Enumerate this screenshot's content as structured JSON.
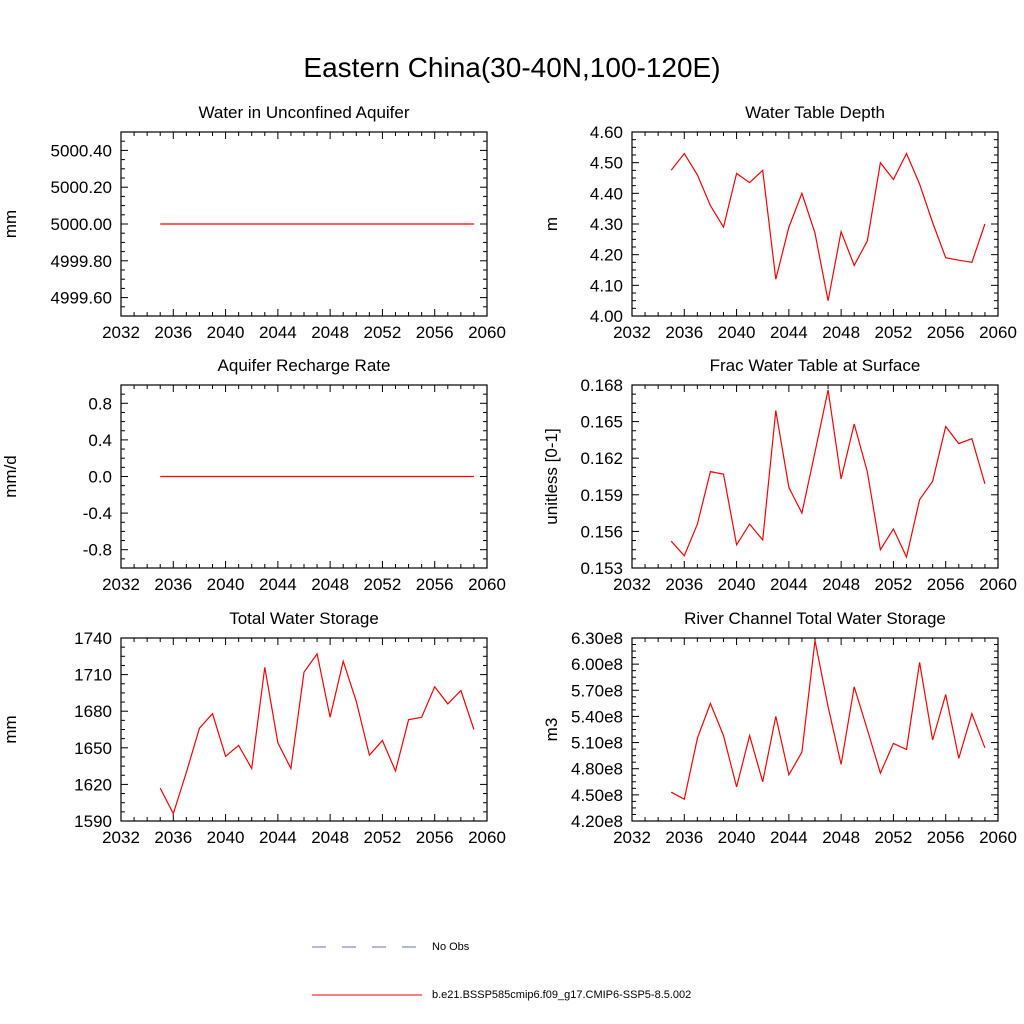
{
  "figure": {
    "title": "Eastern China(30-40N,100-120E)",
    "legend": [
      {
        "label": "No Obs",
        "style": "dashed",
        "color": "#6a6fb2"
      },
      {
        "label": "b.e21.BSSP585cmip6.f09_g17.CMIP6-SSP5-8.5.002",
        "style": "solid",
        "color": "#ff0000"
      }
    ]
  },
  "chart_data": [
    {
      "type": "line",
      "title": "Water in Unconfined Aquifer",
      "xlabel": "",
      "ylabel": "mm",
      "xlim": [
        2032,
        2060
      ],
      "ylim": [
        4999.5,
        5000.5
      ],
      "xticks": [
        2032,
        2036,
        2040,
        2044,
        2048,
        2052,
        2056,
        2060
      ],
      "yticks": [
        4999.6,
        4999.8,
        5000.0,
        5000.2,
        5000.4
      ],
      "ytick_labels": [
        "4999.60",
        "4999.80",
        "5000.00",
        "5000.20",
        "5000.40"
      ],
      "x": [
        2035,
        2036,
        2037,
        2038,
        2039,
        2040,
        2041,
        2042,
        2043,
        2044,
        2045,
        2046,
        2047,
        2048,
        2049,
        2050,
        2051,
        2052,
        2053,
        2054,
        2055,
        2056,
        2057,
        2058,
        2059
      ],
      "series": [
        {
          "name": "b.e21.BSSP585cmip6.f09_g17.CMIP6-SSP5-8.5.002",
          "color": "#ff0000",
          "values": [
            5000,
            5000,
            5000,
            5000,
            5000,
            5000,
            5000,
            5000,
            5000,
            5000,
            5000,
            5000,
            5000,
            5000,
            5000,
            5000,
            5000,
            5000,
            5000,
            5000,
            5000,
            5000,
            5000,
            5000,
            5000
          ]
        }
      ]
    },
    {
      "type": "line",
      "title": "Water Table Depth",
      "xlabel": "",
      "ylabel": "m",
      "xlim": [
        2032,
        2060
      ],
      "ylim": [
        4.0,
        4.6
      ],
      "xticks": [
        2032,
        2036,
        2040,
        2044,
        2048,
        2052,
        2056,
        2060
      ],
      "yticks": [
        4.0,
        4.1,
        4.2,
        4.3,
        4.4,
        4.5,
        4.6
      ],
      "ytick_labels": [
        "4.00",
        "4.10",
        "4.20",
        "4.30",
        "4.40",
        "4.50",
        "4.60"
      ],
      "x": [
        2035,
        2036,
        2037,
        2038,
        2039,
        2040,
        2041,
        2042,
        2043,
        2044,
        2045,
        2046,
        2047,
        2048,
        2049,
        2050,
        2051,
        2052,
        2053,
        2054,
        2055,
        2056,
        2057,
        2058,
        2059
      ],
      "series": [
        {
          "name": "b.e21.BSSP585cmip6.f09_g17.CMIP6-SSP5-8.5.002",
          "color": "#ff0000",
          "values": [
            4.475,
            4.53,
            4.46,
            4.36,
            4.29,
            4.465,
            4.435,
            4.475,
            4.12,
            4.29,
            4.4,
            4.27,
            4.05,
            4.275,
            4.165,
            4.245,
            4.5,
            4.445,
            4.53,
            4.43,
            4.305,
            4.19,
            4.182,
            4.175,
            4.3
          ]
        }
      ]
    },
    {
      "type": "line",
      "title": "Aquifer Recharge Rate",
      "xlabel": "",
      "ylabel": "mm/d",
      "xlim": [
        2032,
        2060
      ],
      "ylim": [
        -1.0,
        1.0
      ],
      "xticks": [
        2032,
        2036,
        2040,
        2044,
        2048,
        2052,
        2056,
        2060
      ],
      "yticks": [
        -0.8,
        -0.4,
        0.0,
        0.4,
        0.8
      ],
      "ytick_labels": [
        "-0.8",
        "-0.4",
        "0.0",
        "0.4",
        "0.8"
      ],
      "x": [
        2035,
        2036,
        2037,
        2038,
        2039,
        2040,
        2041,
        2042,
        2043,
        2044,
        2045,
        2046,
        2047,
        2048,
        2049,
        2050,
        2051,
        2052,
        2053,
        2054,
        2055,
        2056,
        2057,
        2058,
        2059
      ],
      "series": [
        {
          "name": "b.e21.BSSP585cmip6.f09_g17.CMIP6-SSP5-8.5.002",
          "color": "#ff0000",
          "values": [
            0,
            0,
            0,
            0,
            0,
            0,
            0,
            0,
            0,
            0,
            0,
            0,
            0,
            0,
            0,
            0,
            0,
            0,
            0,
            0,
            0,
            0,
            0,
            0,
            0
          ]
        }
      ]
    },
    {
      "type": "line",
      "title": "Frac Water Table at Surface",
      "xlabel": "",
      "ylabel": "unitless [0-1]",
      "xlim": [
        2032,
        2060
      ],
      "ylim": [
        0.153,
        0.168
      ],
      "xticks": [
        2032,
        2036,
        2040,
        2044,
        2048,
        2052,
        2056,
        2060
      ],
      "yticks": [
        0.153,
        0.156,
        0.159,
        0.162,
        0.165,
        0.168
      ],
      "ytick_labels": [
        "0.153",
        "0.156",
        "0.159",
        "0.162",
        "0.165",
        "0.168"
      ],
      "x": [
        2035,
        2036,
        2037,
        2038,
        2039,
        2040,
        2041,
        2042,
        2043,
        2044,
        2045,
        2046,
        2047,
        2048,
        2049,
        2050,
        2051,
        2052,
        2053,
        2054,
        2055,
        2056,
        2057,
        2058,
        2059
      ],
      "series": [
        {
          "name": "b.e21.BSSP585cmip6.f09_g17.CMIP6-SSP5-8.5.002",
          "color": "#ff0000",
          "values": [
            0.1552,
            0.154,
            0.1566,
            0.1609,
            0.1607,
            0.1549,
            0.1566,
            0.1553,
            0.1659,
            0.1596,
            0.1575,
            0.1625,
            0.1676,
            0.1603,
            0.1648,
            0.1609,
            0.1545,
            0.1562,
            0.1539,
            0.1586,
            0.1601,
            0.1646,
            0.1632,
            0.1636,
            0.1599
          ]
        }
      ]
    },
    {
      "type": "line",
      "title": "Total Water Storage",
      "xlabel": "",
      "ylabel": "mm",
      "xlim": [
        2032,
        2060
      ],
      "ylim": [
        1590,
        1740
      ],
      "xticks": [
        2032,
        2036,
        2040,
        2044,
        2048,
        2052,
        2056,
        2060
      ],
      "yticks": [
        1590,
        1620,
        1650,
        1680,
        1710,
        1740
      ],
      "ytick_labels": [
        "1590",
        "1620",
        "1650",
        "1680",
        "1710",
        "1740"
      ],
      "x": [
        2035,
        2036,
        2037,
        2038,
        2039,
        2040,
        2041,
        2042,
        2043,
        2044,
        2045,
        2046,
        2047,
        2048,
        2049,
        2050,
        2051,
        2052,
        2053,
        2054,
        2055,
        2056,
        2057,
        2058,
        2059
      ],
      "series": [
        {
          "name": "b.e21.BSSP585cmip6.f09_g17.CMIP6-SSP5-8.5.002",
          "color": "#ff0000",
          "values": [
            1617,
            1596,
            1630,
            1666,
            1678,
            1643,
            1652,
            1633,
            1716,
            1654,
            1633,
            1712,
            1727,
            1675,
            1721,
            1688,
            1644,
            1656,
            1631,
            1673,
            1675,
            1700,
            1686,
            1697,
            1665
          ]
        }
      ]
    },
    {
      "type": "line",
      "title": "River Channel Total Water Storage",
      "xlabel": "",
      "ylabel": "m3",
      "xlim": [
        2032,
        2060
      ],
      "ylim": [
        420000000,
        630000000
      ],
      "xticks": [
        2032,
        2036,
        2040,
        2044,
        2048,
        2052,
        2056,
        2060
      ],
      "yticks": [
        420000000,
        450000000,
        480000000,
        510000000,
        540000000,
        570000000,
        600000000,
        630000000
      ],
      "ytick_labels": [
        "4.20e8",
        "4.50e8",
        "4.80e8",
        "5.10e8",
        "5.40e8",
        "5.70e8",
        "6.00e8",
        "6.30e8"
      ],
      "x": [
        2035,
        2036,
        2037,
        2038,
        2039,
        2040,
        2041,
        2042,
        2043,
        2044,
        2045,
        2046,
        2047,
        2048,
        2049,
        2050,
        2051,
        2052,
        2053,
        2054,
        2055,
        2056,
        2057,
        2058,
        2059
      ],
      "series": [
        {
          "name": "b.e21.BSSP585cmip6.f09_g17.CMIP6-SSP5-8.5.002",
          "color": "#ff0000",
          "values": [
            453000000,
            445000000,
            515000000,
            555000000,
            518000000,
            459000000,
            518000000,
            465000000,
            540000000,
            473000000,
            499000000,
            627000000,
            551000000,
            485000000,
            574000000,
            525000000,
            475000000,
            509000000,
            502000000,
            602000000,
            513000000,
            565000000,
            492000000,
            543000000,
            504000000
          ]
        }
      ]
    }
  ]
}
